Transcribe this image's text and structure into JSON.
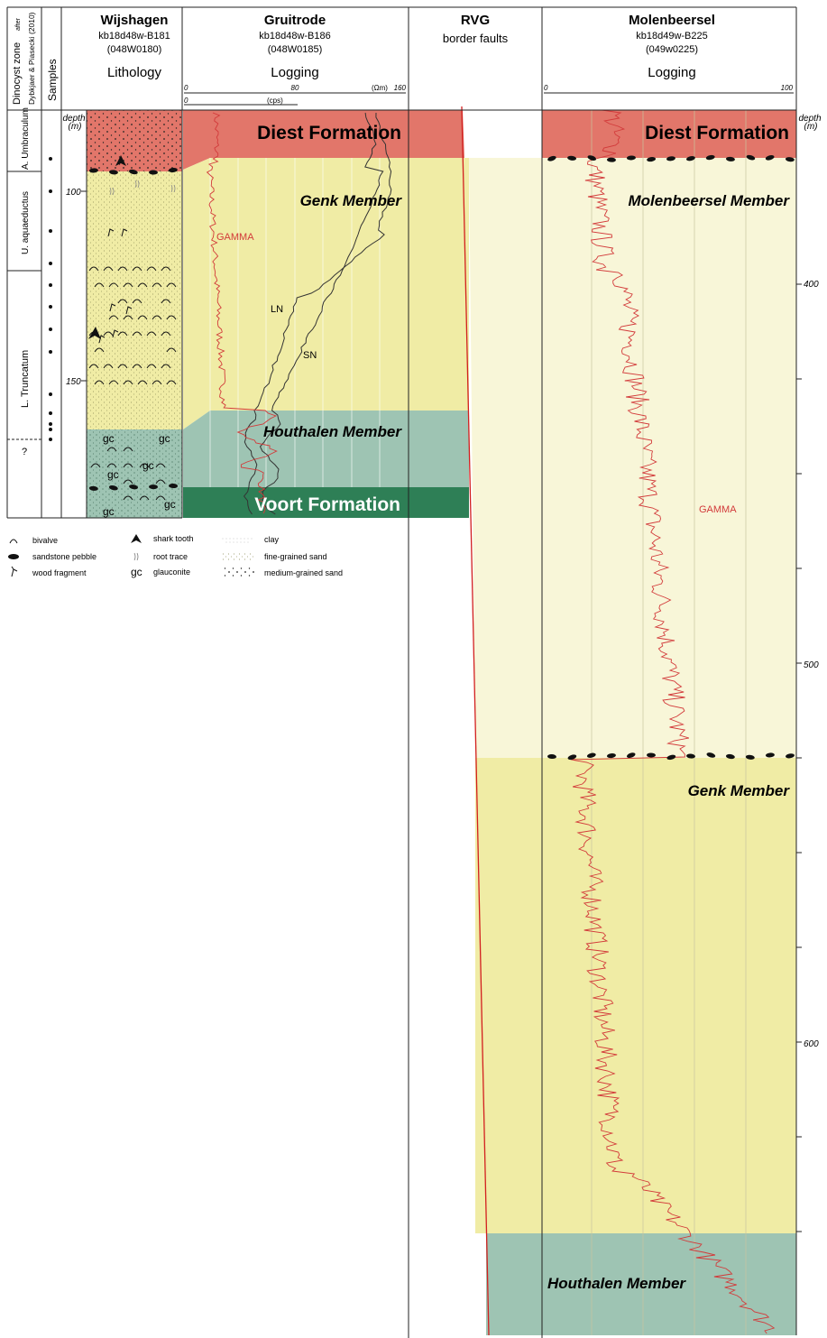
{
  "header": {
    "dinocyst_title": "Dinocyst zone",
    "dinocyst_after": "after",
    "dinocyst_ref": "Dybkjaer & Piasecki (2010)",
    "samples": "Samples",
    "wijshagen": {
      "name": "Wijshagen",
      "code": "kb18d48w-B181",
      "id": "(048W0180)",
      "caption": "Lithology"
    },
    "gruitrode": {
      "name": "Gruitrode",
      "code": "kb18d48w-B186",
      "id": "(048W0185)",
      "caption": "Logging",
      "scale_zero": "0",
      "scale_mid": "80",
      "scale_unit": "(Ωm)",
      "scale_max": "160",
      "scale2_zero": "0",
      "scale2_unit": "(cps)"
    },
    "rvg": {
      "name": "RVG",
      "sub": "border faults"
    },
    "molenbeersel": {
      "name": "Molenbeersel",
      "code": "kb18d49w-B225",
      "id": "(049w0225)",
      "caption": "Logging",
      "scale_zero": "0",
      "scale_max": "100"
    }
  },
  "zones": [
    "A. Umbraculum",
    "U. aquaeductus",
    "L. Truncatum",
    "?"
  ],
  "depth_left": {
    "label": "depth",
    "unit": "(m)",
    "ticks": [
      "100",
      "150"
    ]
  },
  "depth_right": {
    "label": "depth",
    "unit": "(m)",
    "ticks": [
      "400",
      "500",
      "600"
    ]
  },
  "units": {
    "diest_left": "Diest Formation",
    "genk_left": "Genk Member",
    "houthalen_left": "Houthalen Member",
    "voort": "Voort Formation",
    "diest_right": "Diest Formation",
    "molenbeersel_member": "Molenbeersel Member",
    "genk_right": "Genk Member",
    "houthalen_right": "Houthalen Member"
  },
  "curves": {
    "gamma_left": "GAMMA",
    "ln": "LN",
    "sn": "SN",
    "gamma_right": "GAMMA"
  },
  "glauconite_symbol": "gc",
  "legend": [
    {
      "icon": "bivalve-icon",
      "label": "bivalve"
    },
    {
      "icon": "sandstone-pebble-icon",
      "label": "sandstone pebble"
    },
    {
      "icon": "wood-fragment-icon",
      "label": "wood fragment"
    },
    {
      "icon": "shark-tooth-icon",
      "label": "shark tooth"
    },
    {
      "icon": "root-trace-icon",
      "label": "root trace"
    },
    {
      "icon": "glauconite-icon",
      "label": "glauconite"
    },
    {
      "icon": "clay-pattern-icon",
      "label": "clay"
    },
    {
      "icon": "fine-sand-pattern-icon",
      "label": "fine-grained sand"
    },
    {
      "icon": "medium-sand-pattern-icon",
      "label": "medium-grained sand"
    }
  ],
  "colors": {
    "diest": "#e2766a",
    "genk": "#f0eca5",
    "molenbeersel_member": "#f8f6d8",
    "houthalen": "#9ec4b3",
    "voort": "#2e7f56",
    "gamma": "#d23a3a",
    "fault": "#d21f1f"
  }
}
